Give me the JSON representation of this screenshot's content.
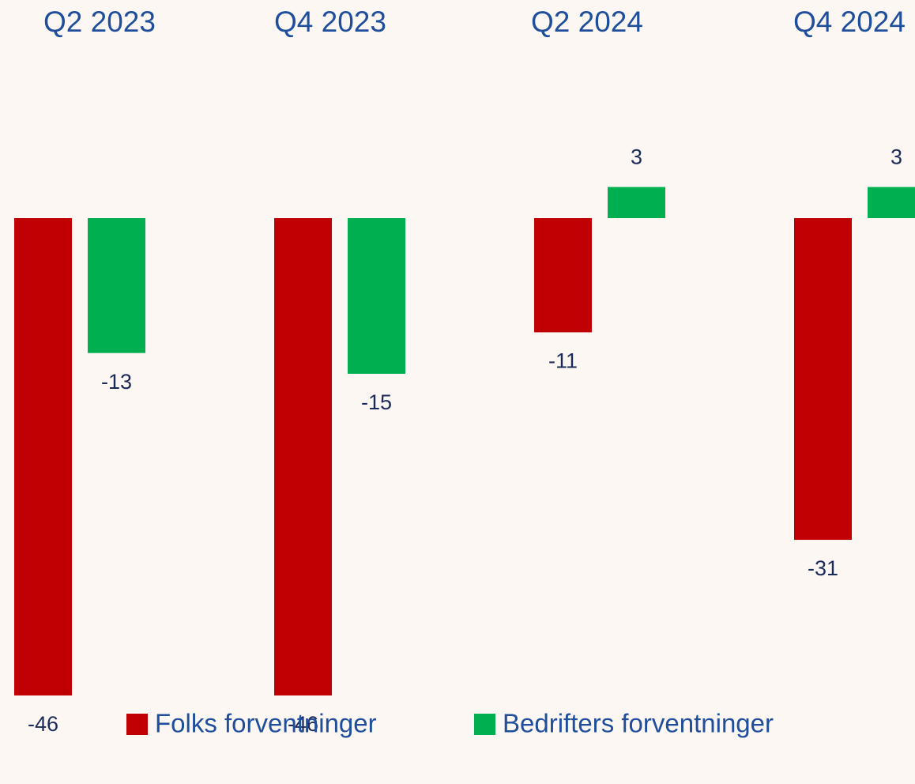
{
  "chart_data": {
    "type": "bar",
    "categories": [
      "Q2 2023",
      "Q4 2023",
      "Q2 2024",
      "Q4 2024"
    ],
    "series": [
      {
        "name": "Folks forventninger",
        "color": "#c00000",
        "values": [
          -46,
          -46,
          -11,
          -31
        ]
      },
      {
        "name": "Bedrifters forventninger",
        "color": "#00b050",
        "values": [
          -13,
          -15,
          3,
          3
        ]
      }
    ]
  }
}
